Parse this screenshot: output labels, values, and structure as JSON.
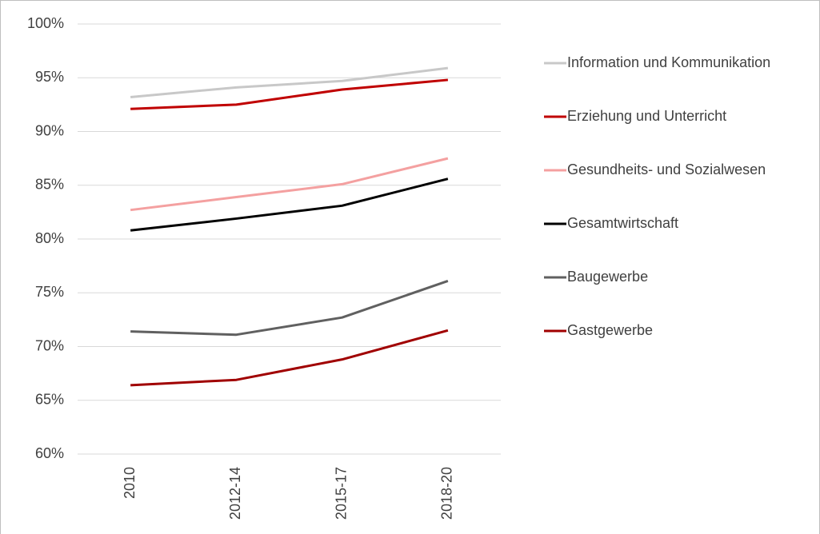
{
  "chart_data": {
    "type": "line",
    "categories": [
      "2010",
      "2012-14",
      "2015-17",
      "2018-20"
    ],
    "series": [
      {
        "name": "Information und Kommunikation",
        "color": "#c8c8c8",
        "values": [
          93.2,
          94.1,
          94.7,
          95.9
        ]
      },
      {
        "name": "Erziehung und Unterricht",
        "color": "#c00000",
        "values": [
          92.1,
          92.5,
          93.9,
          94.8
        ]
      },
      {
        "name": "Gesundheits- und Sozialwesen",
        "color": "#f4a0a0",
        "values": [
          82.7,
          83.9,
          85.1,
          87.5
        ]
      },
      {
        "name": "Gesamtwirtschaft",
        "color": "#000000",
        "values": [
          80.8,
          81.9,
          83.1,
          85.6
        ]
      },
      {
        "name": "Baugewerbe",
        "color": "#606060",
        "values": [
          71.4,
          71.1,
          72.7,
          76.1
        ]
      },
      {
        "name": "Gastgewerbe",
        "color": "#a00000",
        "values": [
          66.4,
          66.9,
          68.8,
          71.5
        ]
      }
    ],
    "ylim": [
      60,
      100
    ],
    "yticks": [
      {
        "value": 60,
        "label": "60%"
      },
      {
        "value": 65,
        "label": "65%"
      },
      {
        "value": 70,
        "label": "70%"
      },
      {
        "value": 75,
        "label": "75%"
      },
      {
        "value": 80,
        "label": "80%"
      },
      {
        "value": 85,
        "label": "85%"
      },
      {
        "value": 90,
        "label": "90%"
      },
      {
        "value": 95,
        "label": "95%"
      },
      {
        "value": 100,
        "label": "100%"
      }
    ],
    "grid": true,
    "legend": "right"
  }
}
